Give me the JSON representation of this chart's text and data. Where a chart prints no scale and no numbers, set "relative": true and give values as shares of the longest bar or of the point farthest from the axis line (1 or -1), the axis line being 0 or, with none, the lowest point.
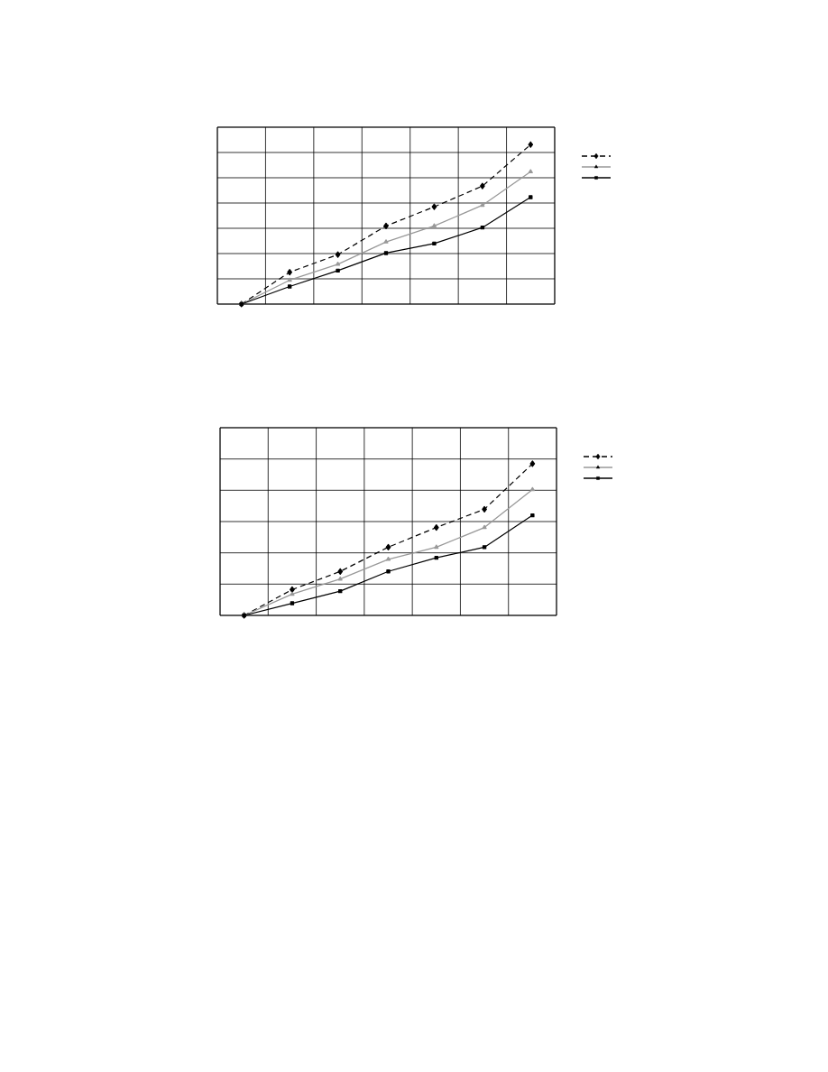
{
  "chart_data": [
    {
      "type": "line",
      "relative": true,
      "categories": [
        null,
        null,
        null,
        null,
        null,
        null,
        null
      ],
      "grid": true,
      "series": [
        {
          "color": "#000000",
          "marker": "diamond",
          "line_style": "dashed",
          "values": [
            0,
            0.2,
            0.31,
            0.49,
            0.61,
            0.74,
            1
          ]
        },
        {
          "color": "#999999",
          "marker": "triangle",
          "line_style": "solid",
          "values": [
            0,
            0.15,
            0.25,
            0.39,
            0.49,
            0.62,
            0.83
          ]
        },
        {
          "color": "#000000",
          "marker": "square",
          "line_style": "solid",
          "values": [
            0,
            0.11,
            0.21,
            0.32,
            0.38,
            0.48,
            0.67
          ]
        }
      ]
    },
    {
      "type": "line",
      "relative": true,
      "categories": [
        null,
        null,
        null,
        null,
        null,
        null,
        null
      ],
      "grid": true,
      "series": [
        {
          "color": "#000000",
          "marker": "diamond",
          "line_style": "dashed",
          "values": [
            0,
            0.17,
            0.29,
            0.45,
            0.58,
            0.7,
            1
          ]
        },
        {
          "color": "#999999",
          "marker": "triangle",
          "line_style": "solid",
          "values": [
            0,
            0.14,
            0.24,
            0.37,
            0.45,
            0.58,
            0.83
          ]
        },
        {
          "color": "#000000",
          "marker": "square",
          "line_style": "solid",
          "values": [
            0,
            0.08,
            0.16,
            0.29,
            0.38,
            0.45,
            0.66
          ]
        }
      ]
    }
  ]
}
